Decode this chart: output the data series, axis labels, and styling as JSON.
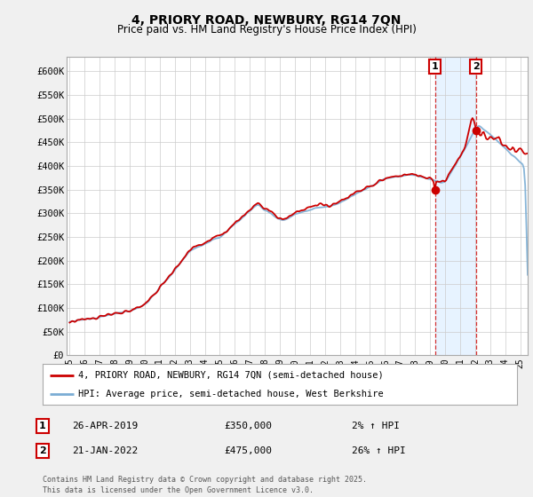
{
  "title": "4, PRIORY ROAD, NEWBURY, RG14 7QN",
  "subtitle": "Price paid vs. HM Land Registry's House Price Index (HPI)",
  "ylabel_ticks": [
    "£0",
    "£50K",
    "£100K",
    "£150K",
    "£200K",
    "£250K",
    "£300K",
    "£350K",
    "£400K",
    "£450K",
    "£500K",
    "£550K",
    "£600K"
  ],
  "ytick_values": [
    0,
    50000,
    100000,
    150000,
    200000,
    250000,
    300000,
    350000,
    400000,
    450000,
    500000,
    550000,
    600000
  ],
  "ylim": [
    0,
    630000
  ],
  "xlim_start": 1994.8,
  "xlim_end": 2025.5,
  "bg_color": "#f0f0f0",
  "plot_bg_color": "#ffffff",
  "hpi_color": "#7aadd4",
  "price_color": "#cc0000",
  "shade_color": "#ddeeff",
  "sale1_date": 2019.32,
  "sale1_price": 350000,
  "sale2_date": 2022.06,
  "sale2_price": 475000,
  "legend_house": "4, PRIORY ROAD, NEWBURY, RG14 7QN (semi-detached house)",
  "legend_hpi": "HPI: Average price, semi-detached house, West Berkshire",
  "annotation1_date": "26-APR-2019",
  "annotation1_price": "£350,000",
  "annotation1_pct": "2% ↑ HPI",
  "annotation2_date": "21-JAN-2022",
  "annotation2_price": "£475,000",
  "annotation2_pct": "26% ↑ HPI",
  "footer": "Contains HM Land Registry data © Crown copyright and database right 2025.\nThis data is licensed under the Open Government Licence v3.0."
}
